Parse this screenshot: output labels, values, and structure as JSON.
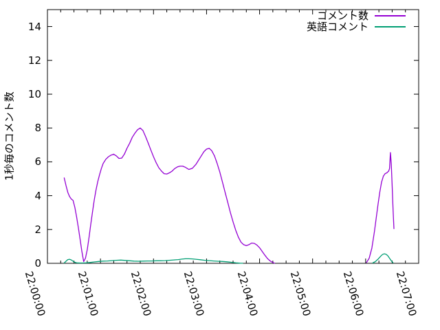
{
  "chart_data": {
    "type": "line",
    "title": "",
    "xlabel": "",
    "ylabel": "1秒毎のコメント数",
    "grid": false,
    "legend_position": "top-right-inside",
    "x_axis": {
      "kind": "time",
      "range_s": [
        0,
        420
      ],
      "tick_seconds": [
        0,
        60,
        120,
        180,
        240,
        300,
        360,
        420
      ],
      "tick_labels": [
        "22:00:00",
        "22:01:00",
        "22:02:00",
        "22:03:00",
        "22:04:00",
        "22:05:00",
        "22:06:00",
        "22:07:00"
      ],
      "minor_tick_interval_s": 15
    },
    "y_axis": {
      "range": [
        0,
        15
      ],
      "ticks": [
        0,
        2,
        4,
        6,
        8,
        10,
        12,
        14
      ]
    },
    "series": [
      {
        "key": "comments",
        "name": "コメント数",
        "color": "#9400d3",
        "segments": [
          [
            [
              19,
              5.05
            ],
            [
              21,
              4.6
            ],
            [
              23,
              4.2
            ],
            [
              25,
              3.95
            ],
            [
              27,
              3.8
            ],
            [
              29,
              3.72
            ],
            [
              31,
              3.3
            ],
            [
              33,
              2.75
            ],
            [
              35,
              2.1
            ],
            [
              37,
              1.4
            ],
            [
              39,
              0.7
            ],
            [
              41,
              0.1
            ],
            [
              43,
              0.3
            ],
            [
              45,
              0.8
            ],
            [
              47,
              1.5
            ],
            [
              49,
              2.3
            ],
            [
              51,
              3.05
            ],
            [
              53,
              3.75
            ],
            [
              55,
              4.35
            ],
            [
              57,
              4.85
            ],
            [
              59,
              5.25
            ],
            [
              61,
              5.6
            ],
            [
              63,
              5.9
            ],
            [
              66,
              6.15
            ],
            [
              69,
              6.3
            ],
            [
              72,
              6.4
            ],
            [
              75,
              6.45
            ],
            [
              78,
              6.35
            ],
            [
              81,
              6.2
            ],
            [
              84,
              6.22
            ],
            [
              87,
              6.45
            ],
            [
              90,
              6.8
            ],
            [
              93,
              7.1
            ],
            [
              96,
              7.45
            ],
            [
              99,
              7.7
            ],
            [
              102,
              7.9
            ],
            [
              105,
              8.0
            ],
            [
              108,
              7.85
            ],
            [
              111,
              7.5
            ],
            [
              114,
              7.1
            ],
            [
              117,
              6.7
            ],
            [
              120,
              6.3
            ],
            [
              123,
              5.95
            ],
            [
              126,
              5.65
            ],
            [
              129,
              5.45
            ],
            [
              132,
              5.3
            ],
            [
              135,
              5.28
            ],
            [
              138,
              5.35
            ],
            [
              141,
              5.45
            ],
            [
              144,
              5.6
            ],
            [
              147,
              5.7
            ],
            [
              150,
              5.75
            ],
            [
              153,
              5.75
            ],
            [
              156,
              5.68
            ],
            [
              160,
              5.55
            ],
            [
              164,
              5.62
            ],
            [
              168,
              5.85
            ],
            [
              171,
              6.1
            ],
            [
              174,
              6.35
            ],
            [
              177,
              6.6
            ],
            [
              180,
              6.75
            ],
            [
              183,
              6.8
            ],
            [
              186,
              6.65
            ],
            [
              189,
              6.35
            ],
            [
              192,
              5.9
            ],
            [
              195,
              5.4
            ],
            [
              198,
              4.8
            ],
            [
              201,
              4.2
            ],
            [
              204,
              3.6
            ],
            [
              207,
              3.0
            ],
            [
              210,
              2.45
            ],
            [
              213,
              1.95
            ],
            [
              216,
              1.55
            ],
            [
              219,
              1.25
            ],
            [
              222,
              1.1
            ],
            [
              225,
              1.05
            ],
            [
              228,
              1.1
            ],
            [
              231,
              1.2
            ],
            [
              234,
              1.18
            ],
            [
              237,
              1.08
            ],
            [
              240,
              0.92
            ],
            [
              243,
              0.7
            ],
            [
              246,
              0.48
            ],
            [
              249,
              0.28
            ],
            [
              252,
              0.14
            ],
            [
              255,
              0.05
            ],
            [
              257,
              0.01
            ]
          ],
          [
            [
              361,
              0.05
            ],
            [
              364,
              0.3
            ],
            [
              367,
              0.9
            ],
            [
              370,
              1.9
            ],
            [
              372,
              2.7
            ],
            [
              374,
              3.5
            ],
            [
              376,
              4.2
            ],
            [
              378,
              4.8
            ],
            [
              380,
              5.15
            ],
            [
              382,
              5.3
            ],
            [
              384,
              5.35
            ],
            [
              386,
              5.45
            ],
            [
              387,
              5.6
            ],
            [
              388,
              6.55
            ],
            [
              389,
              5.9
            ],
            [
              390,
              4.6
            ],
            [
              391,
              3.2
            ],
            [
              392,
              2.05
            ]
          ]
        ]
      },
      {
        "key": "english-comments",
        "name": "英語コメント",
        "color": "#009e73",
        "segments": [
          [
            [
              19,
              0.02
            ],
            [
              21,
              0.12
            ],
            [
              23,
              0.22
            ],
            [
              25,
              0.24
            ],
            [
              27,
              0.2
            ],
            [
              29,
              0.12
            ],
            [
              31,
              0.06
            ],
            [
              33,
              0.03
            ],
            [
              36,
              0.02
            ],
            [
              40,
              0.02
            ],
            [
              44,
              0.03
            ],
            [
              48,
              0.05
            ],
            [
              53,
              0.08
            ],
            [
              58,
              0.11
            ],
            [
              63,
              0.13
            ],
            [
              68,
              0.14
            ],
            [
              73,
              0.16
            ],
            [
              78,
              0.18
            ],
            [
              83,
              0.19
            ],
            [
              88,
              0.17
            ],
            [
              93,
              0.15
            ],
            [
              98,
              0.13
            ],
            [
              103,
              0.12
            ],
            [
              108,
              0.13
            ],
            [
              113,
              0.14
            ],
            [
              118,
              0.14
            ],
            [
              123,
              0.15
            ],
            [
              128,
              0.15
            ],
            [
              133,
              0.16
            ],
            [
              138,
              0.18
            ],
            [
              143,
              0.2
            ],
            [
              148,
              0.22
            ],
            [
              152,
              0.25
            ],
            [
              156,
              0.27
            ],
            [
              160,
              0.27
            ],
            [
              164,
              0.26
            ],
            [
              168,
              0.24
            ],
            [
              173,
              0.21
            ],
            [
              178,
              0.18
            ],
            [
              183,
              0.16
            ],
            [
              188,
              0.14
            ],
            [
              193,
              0.12
            ],
            [
              198,
              0.11
            ],
            [
              203,
              0.09
            ],
            [
              208,
              0.06
            ],
            [
              213,
              0.03
            ],
            [
              218,
              0.01
            ],
            [
              221,
              0.005
            ]
          ],
          [
            [
              368,
              0.02
            ],
            [
              371,
              0.1
            ],
            [
              374,
              0.25
            ],
            [
              377,
              0.42
            ],
            [
              379,
              0.52
            ],
            [
              381,
              0.56
            ],
            [
              383,
              0.54
            ],
            [
              385,
              0.45
            ],
            [
              387,
              0.3
            ],
            [
              389,
              0.15
            ],
            [
              391,
              0.03
            ]
          ]
        ]
      }
    ],
    "frame_color": "#000000",
    "background_color": "#ffffff"
  }
}
